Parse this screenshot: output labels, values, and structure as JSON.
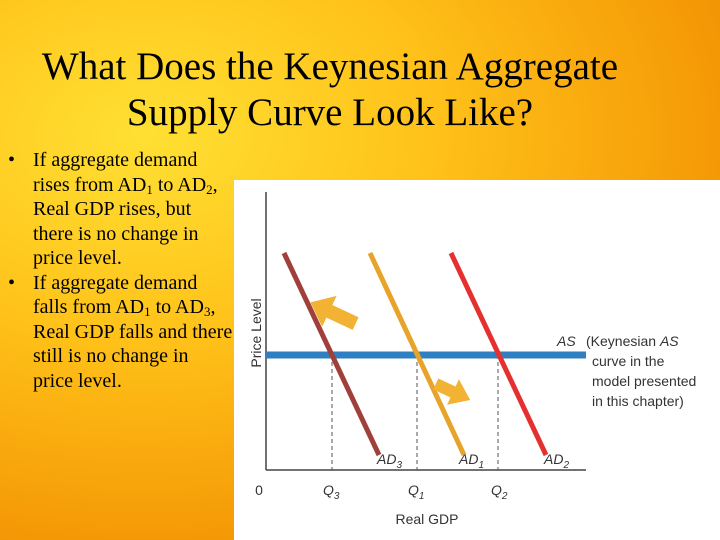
{
  "title_line1": "What Does the Keynesian Aggregate",
  "title_line2": "Supply Curve Look Like?",
  "bullets": [
    {
      "marker": "•",
      "text_a": "If aggregate demand rises from AD",
      "sub_a": "1",
      "text_b": " to AD",
      "sub_b": "2",
      "text_c": ", Real GDP rises, but there is no change in price level."
    },
    {
      "marker": "•",
      "text_a": "If aggregate demand falls from AD",
      "sub_a": "1",
      "text_b": " to AD",
      "sub_b": "3",
      "text_c": ", Real GDP falls and there still is no change in price level."
    }
  ],
  "chart_data": {
    "type": "line",
    "ylabel": "Price Level",
    "xlabel": "Real GDP",
    "origin_label": "0",
    "x_ticks": [
      {
        "base": "Q",
        "sub": "3"
      },
      {
        "base": "Q",
        "sub": "1"
      },
      {
        "base": "Q",
        "sub": "2"
      }
    ],
    "series": [
      {
        "name": "AD3",
        "label_base": "AD",
        "label_sub": "3",
        "color": "#a0403a"
      },
      {
        "name": "AD1",
        "label_base": "AD",
        "label_sub": "1",
        "color": "#e8a32a"
      },
      {
        "name": "AD2",
        "label_base": "AD",
        "label_sub": "2",
        "color": "#e53030"
      }
    ],
    "as_curve": {
      "name": "AS",
      "color": "#2f7fc1",
      "shape": "horizontal"
    },
    "as_note": {
      "prefix": "(Keynesian ",
      "italic": "AS",
      "lines": [
        "curve in the",
        "model presented",
        "in this chapter)"
      ]
    },
    "arrows": [
      {
        "direction": "left",
        "color": "#f2b233"
      },
      {
        "direction": "right",
        "color": "#f2b233"
      }
    ]
  }
}
